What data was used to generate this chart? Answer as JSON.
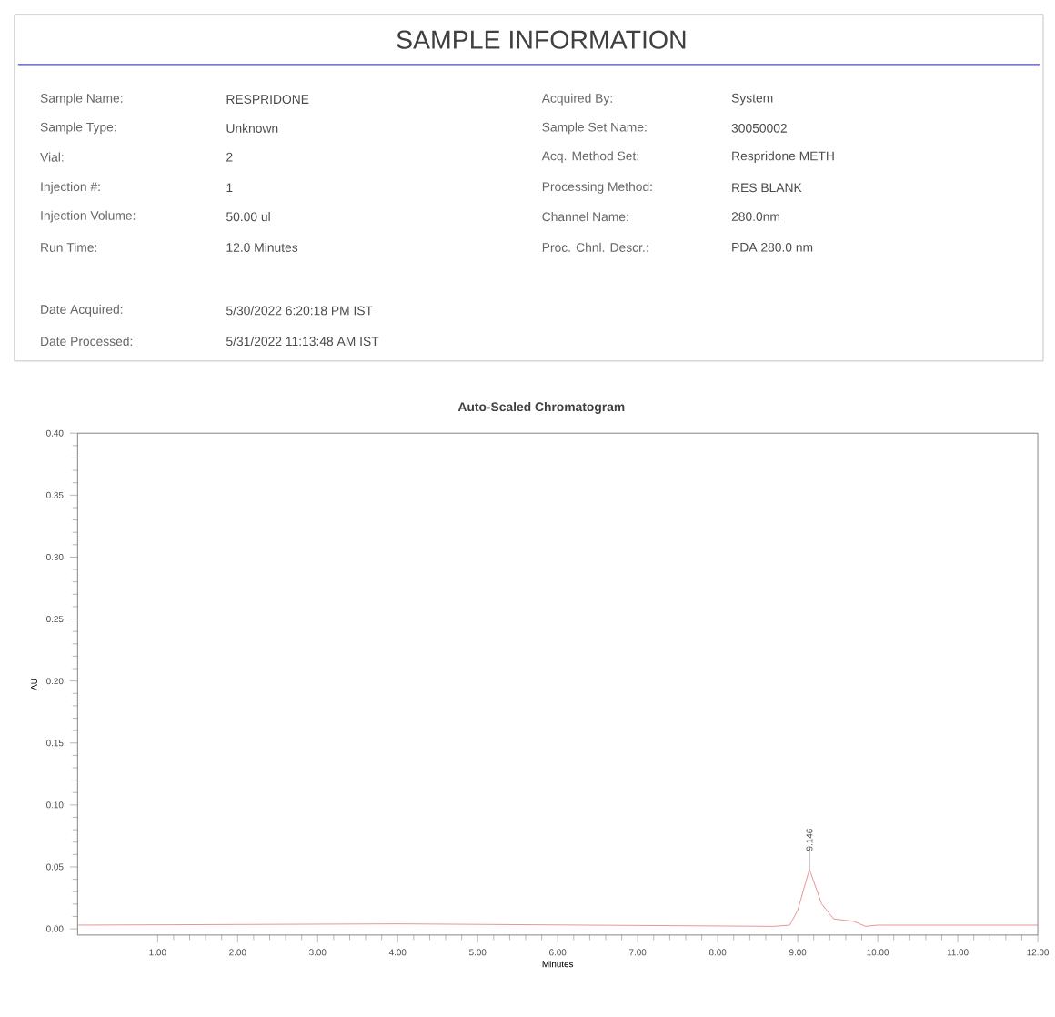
{
  "chart_data": {
    "type": "line",
    "title": "SAMPLE INFORMATION",
    "subtitle": "Auto-Scaled Chromatogram",
    "xlabel": "Minutes",
    "ylabel": "AU",
    "annotations": [
      "Sample Name:",
      "RESPRIDONE",
      "Sample Type:",
      "Unknown",
      "Vial:",
      "2",
      "Injection #:",
      "1",
      "Injection Volume:",
      "50.00 ul",
      "Run Time:",
      "12.0 Minutes",
      "Acquired By:",
      "System",
      "Sample Set Name:",
      "30050002",
      "Acq. Method Set:",
      "Respridone METH",
      "Processing Method:",
      "RES BLANK",
      "Channel Name:",
      "280.0nm",
      "Proc. Chnl. Descr.:",
      "PDA 280.0 nm",
      "Date Acquired:",
      "5/30/2022 6:20:18 PM IST",
      "Date Processed:",
      "5/31/2022 11:13:48 AM IST",
      {
        "text": "9.146",
        "x": 9.146,
        "y": 0.048
      }
    ],
    "x": [
      0,
      4,
      8.7,
      8.9,
      9.0,
      9.146,
      9.3,
      9.45,
      9.7,
      9.85,
      10,
      12
    ],
    "series": [
      {
        "color": "#e07a7a",
        "values": [
          0.003,
          0.004,
          0.002,
          0.003,
          0.015,
          0.048,
          0.02,
          0.008,
          0.006,
          0.002,
          0.003,
          0.003
        ]
      }
    ],
    "xlim": [
      0,
      12
    ],
    "ylim": [
      -0.005,
      0.4
    ],
    "xticks": [
      {
        "value": 1,
        "label": "1.00"
      },
      {
        "value": 2,
        "label": "2.00"
      },
      {
        "value": 3,
        "label": "3.00"
      },
      {
        "value": 4,
        "label": "4.00"
      },
      {
        "value": 5,
        "label": "5.00"
      },
      {
        "value": 6,
        "label": "6.00"
      },
      {
        "value": 7,
        "label": "7.00"
      },
      {
        "value": 8,
        "label": "8.00"
      },
      {
        "value": 9,
        "label": "9.00"
      },
      {
        "value": 10,
        "label": "10.00"
      },
      {
        "value": 11,
        "label": "11.00"
      },
      {
        "value": 12,
        "label": "12.00"
      }
    ],
    "yticks": [
      {
        "value": 0,
        "label": "0.00"
      },
      {
        "value": 0.05,
        "label": "0.05"
      },
      {
        "value": 0.1,
        "label": "0.10"
      },
      {
        "value": 0.15,
        "label": "0.15"
      },
      {
        "value": 0.2,
        "label": "0.20"
      },
      {
        "value": 0.25,
        "label": "0.25"
      },
      {
        "value": 0.3,
        "label": "0.30"
      },
      {
        "value": 0.35,
        "label": "0.35"
      },
      {
        "value": 0.4,
        "label": "0.40"
      }
    ],
    "grid": false,
    "marker": "none",
    "line_style": "solid"
  }
}
